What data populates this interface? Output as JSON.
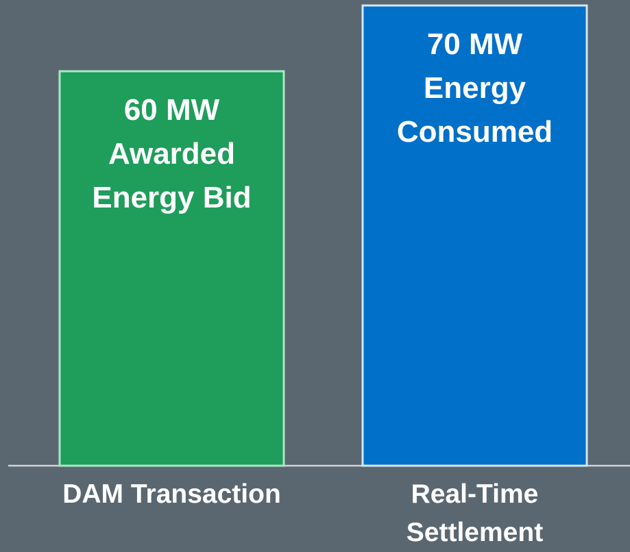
{
  "chart_data": {
    "type": "bar",
    "categories": [
      "DAM Transaction",
      "Real-Time Settlement"
    ],
    "values": [
      60,
      70
    ],
    "value_labels": [
      "60 MW",
      "70 MW"
    ],
    "descriptions": [
      "Awarded Energy Bid",
      "Energy Consumed"
    ],
    "colors": [
      "#1f9d5b",
      "#0070c9"
    ],
    "border_colors": [
      "#a9e8c4",
      "#d3e7f7"
    ]
  }
}
